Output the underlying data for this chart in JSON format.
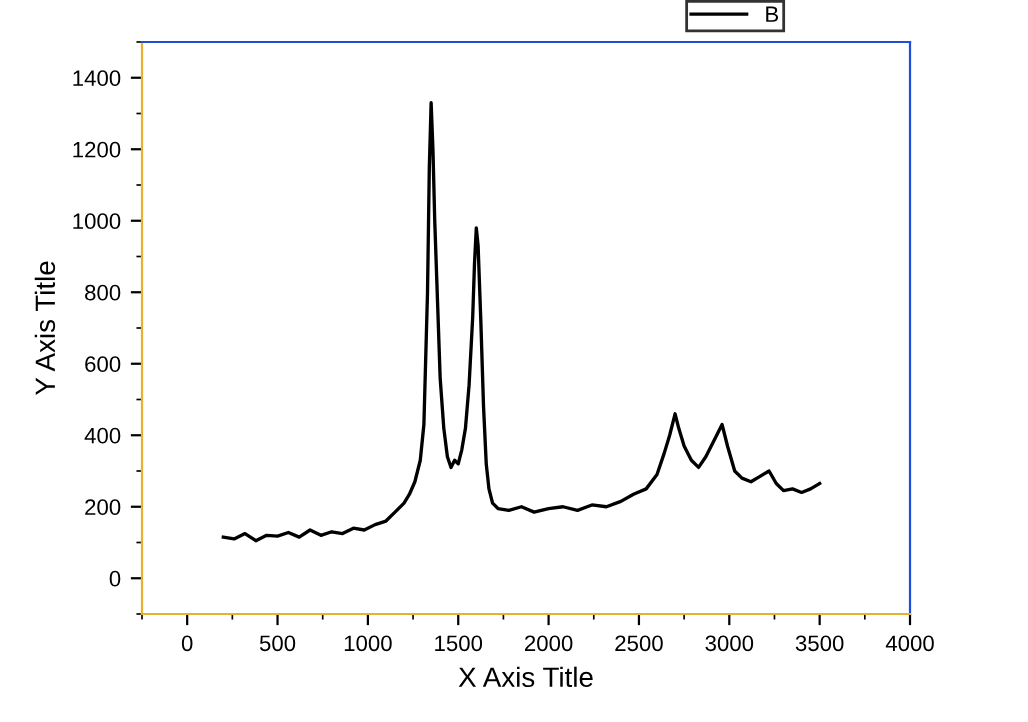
{
  "chart_data": {
    "type": "line",
    "xlabel": "X Axis Title",
    "ylabel": "Y Axis Title",
    "xlim": [
      -250,
      4000
    ],
    "xticks": [
      0,
      500,
      1000,
      1500,
      2000,
      2500,
      3000,
      3500,
      4000
    ],
    "ylim": [
      -100,
      1500
    ],
    "yticks": [
      0,
      200,
      400,
      600,
      800,
      1000,
      1200,
      1400
    ],
    "grid": false,
    "legend": "top right",
    "marker": "none",
    "line_style": "solid",
    "series": [
      {
        "name": "B",
        "color": "#000000",
        "x": [
          200,
          260,
          320,
          380,
          440,
          500,
          560,
          620,
          680,
          740,
          800,
          860,
          920,
          980,
          1040,
          1100,
          1150,
          1200,
          1230,
          1260,
          1290,
          1310,
          1330,
          1340,
          1350,
          1360,
          1370,
          1385,
          1400,
          1420,
          1440,
          1460,
          1480,
          1500,
          1520,
          1540,
          1560,
          1580,
          1590,
          1600,
          1610,
          1625,
          1640,
          1655,
          1670,
          1690,
          1720,
          1780,
          1850,
          1920,
          2000,
          2080,
          2160,
          2240,
          2320,
          2400,
          2470,
          2540,
          2600,
          2640,
          2670,
          2700,
          2720,
          2750,
          2790,
          2830,
          2870,
          2910,
          2940,
          2960,
          2990,
          3030,
          3070,
          3120,
          3170,
          3220,
          3260,
          3300,
          3350,
          3400,
          3450,
          3500
        ],
        "values": [
          115,
          110,
          125,
          105,
          120,
          118,
          128,
          115,
          135,
          120,
          130,
          125,
          140,
          135,
          150,
          160,
          185,
          210,
          235,
          270,
          330,
          430,
          800,
          1150,
          1330,
          1200,
          1000,
          780,
          560,
          420,
          340,
          310,
          330,
          320,
          360,
          420,
          540,
          730,
          880,
          980,
          930,
          720,
          480,
          320,
          250,
          210,
          195,
          190,
          200,
          185,
          195,
          200,
          190,
          205,
          200,
          215,
          235,
          250,
          290,
          350,
          400,
          460,
          420,
          370,
          330,
          310,
          340,
          380,
          410,
          430,
          370,
          300,
          280,
          270,
          285,
          300,
          265,
          245,
          250,
          240,
          250,
          265
        ]
      }
    ]
  }
}
